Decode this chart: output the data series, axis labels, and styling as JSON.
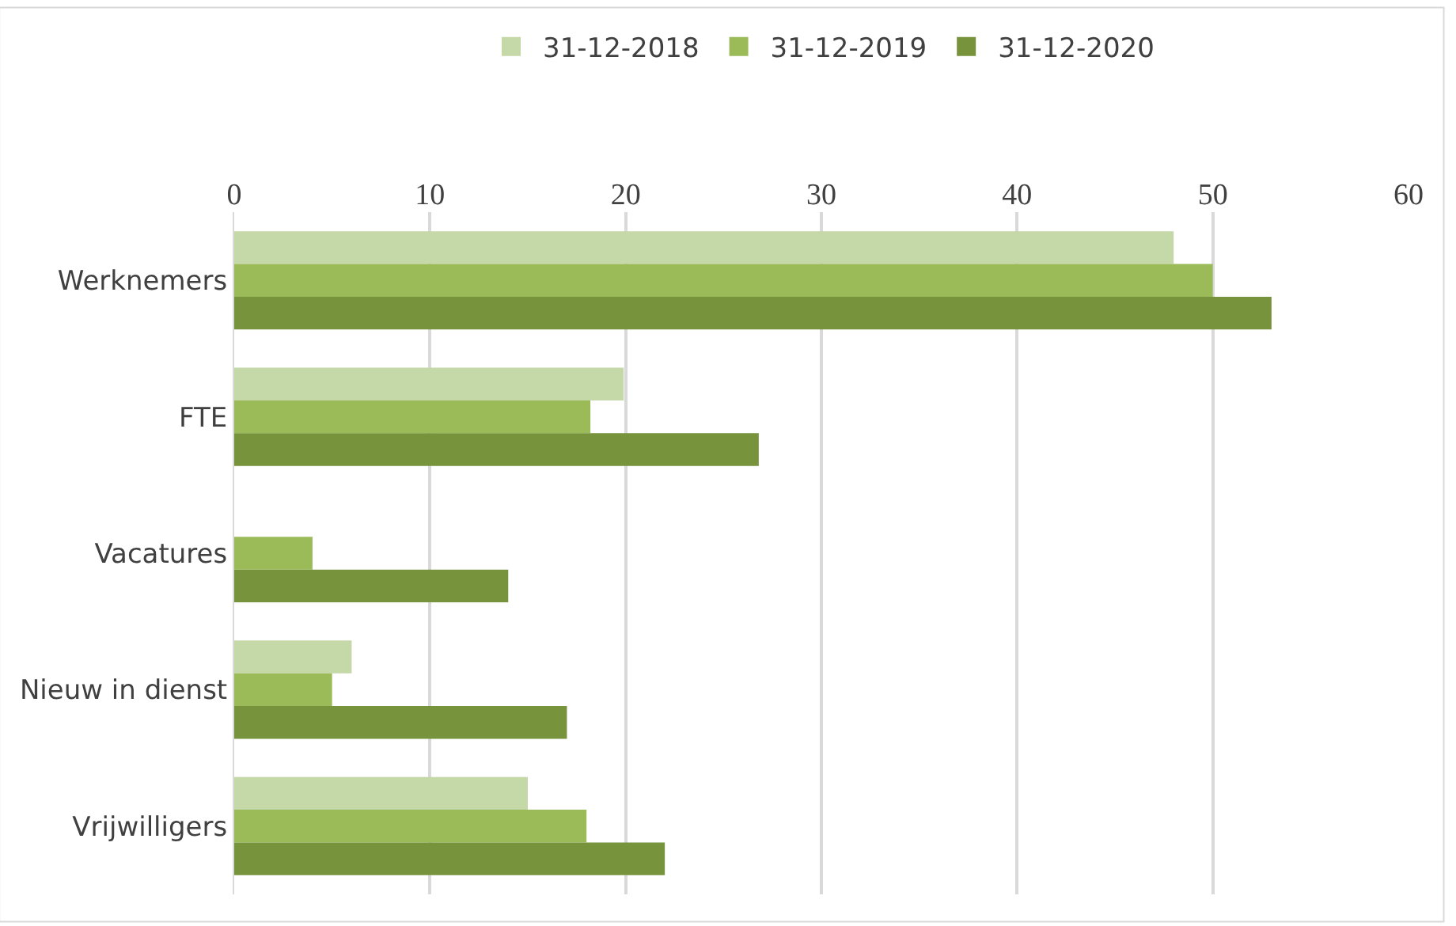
{
  "chart_data": {
    "type": "bar",
    "orientation": "horizontal",
    "categories": [
      "Werknemers",
      "FTE",
      "Vacatures",
      "Nieuw in dienst",
      "Vrijwilligers"
    ],
    "series": [
      {
        "name": "31-12-2018",
        "color": "#c5d8a7",
        "values": [
          48,
          19.9,
          0,
          6,
          15
        ]
      },
      {
        "name": "31-12-2019",
        "color": "#9bbb59",
        "values": [
          50,
          18.2,
          4,
          5,
          18
        ]
      },
      {
        "name": "31-12-2020",
        "color": "#77933c",
        "values": [
          53,
          26.8,
          14,
          17,
          22
        ]
      }
    ],
    "xlim": [
      0,
      60
    ],
    "xticks": [
      0,
      10,
      20,
      30,
      40,
      50,
      60
    ],
    "grid": "x",
    "legend": "top"
  }
}
